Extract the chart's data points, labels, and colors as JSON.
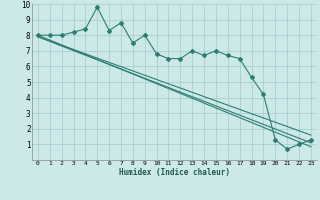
{
  "xlabel": "Humidex (Indice chaleur)",
  "background_color": "#cce8e8",
  "grid_color": "#aad0d0",
  "line_color": "#2e7e70",
  "xlim": [
    -0.5,
    23.5
  ],
  "ylim": [
    0,
    10
  ],
  "xticks": [
    0,
    1,
    2,
    3,
    4,
    5,
    6,
    7,
    8,
    9,
    10,
    11,
    12,
    13,
    14,
    15,
    16,
    17,
    18,
    19,
    20,
    21,
    22,
    23
  ],
  "yticks": [
    1,
    2,
    3,
    4,
    5,
    6,
    7,
    8,
    9,
    10
  ],
  "main_x": [
    0,
    1,
    2,
    3,
    4,
    5,
    6,
    7,
    8,
    9,
    10,
    11,
    12,
    13,
    14,
    15,
    16,
    17,
    18,
    19,
    20,
    21,
    22,
    23
  ],
  "main_y": [
    8.0,
    8.0,
    8.0,
    8.2,
    8.4,
    9.8,
    8.3,
    8.8,
    7.5,
    8.0,
    6.8,
    6.5,
    6.5,
    7.0,
    6.7,
    7.0,
    6.7,
    6.5,
    5.3,
    4.2,
    1.3,
    0.7,
    1.0,
    1.3
  ],
  "line1_x": [
    0,
    23
  ],
  "line1_y": [
    7.9,
    1.1
  ],
  "line2_x": [
    0,
    23
  ],
  "line2_y": [
    7.9,
    1.6
  ],
  "line3_x": [
    0,
    23
  ],
  "line3_y": [
    8.0,
    0.85
  ]
}
